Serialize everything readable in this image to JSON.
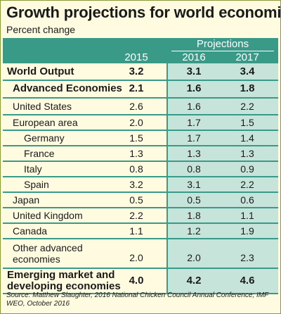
{
  "title": "Growth projections for world economies",
  "subtitle": "Percent change",
  "source": "Source: Matthew Slaughter, 2016 National Chicken Council Annual Conference; IMF WEO, October 2016",
  "colors": {
    "header": "#3a9a88",
    "band": "#c7e4da",
    "background": "#fffbe0"
  },
  "chart_data": {
    "type": "table",
    "title": "Growth projections for world economies",
    "subtitle": "Percent change",
    "group_header": "Projections",
    "columns": [
      "2015",
      "2016",
      "2017"
    ],
    "rows": [
      {
        "label": "World Output",
        "values": [
          "3.2",
          "3.1",
          "3.4"
        ]
      },
      {
        "label": "Advanced Economies",
        "values": [
          "2.1",
          "1.6",
          "1.8"
        ]
      },
      {
        "label": "United States",
        "values": [
          "2.6",
          "1.6",
          "2.2"
        ]
      },
      {
        "label": "European area",
        "values": [
          "2.0",
          "1.7",
          "1.5"
        ]
      },
      {
        "label": "Germany",
        "values": [
          "1.5",
          "1.7",
          "1.4"
        ]
      },
      {
        "label": "France",
        "values": [
          "1.3",
          "1.3",
          "1.3"
        ]
      },
      {
        "label": "Italy",
        "values": [
          "0.8",
          "0.8",
          "0.9"
        ]
      },
      {
        "label": "Spain",
        "values": [
          "3.2",
          "3.1",
          "2.2"
        ]
      },
      {
        "label": "Japan",
        "values": [
          "0.5",
          "0.5",
          "0.6"
        ]
      },
      {
        "label": "United Kingdom",
        "values": [
          "2.2",
          "1.8",
          "1.1"
        ]
      },
      {
        "label": "Canada",
        "values": [
          "1.1",
          "1.2",
          "1.9"
        ]
      },
      {
        "label": "Other advanced economies",
        "values": [
          "2.0",
          "2.0",
          "2.3"
        ]
      },
      {
        "label": "Emerging market and developing economies",
        "values": [
          "4.0",
          "4.2",
          "4.6"
        ]
      }
    ]
  }
}
